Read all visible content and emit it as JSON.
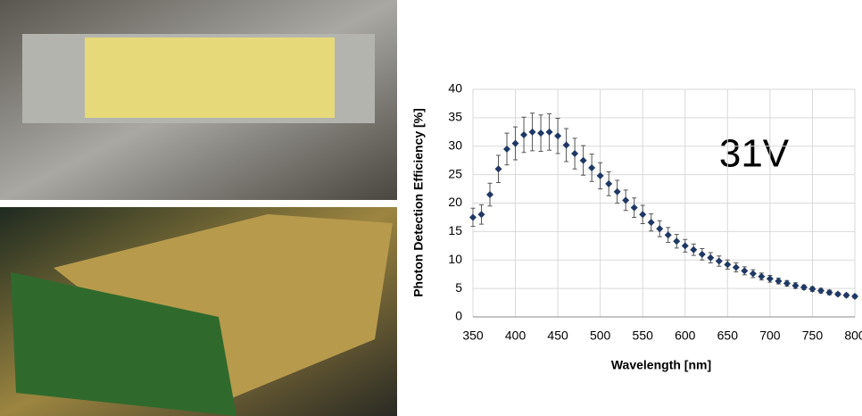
{
  "chart_data": {
    "type": "scatter",
    "xlabel": "Wavelength [nm]",
    "ylabel": "Photon Detection Efficiency [%]",
    "annotation": "31V",
    "color": "#1f3864",
    "grid": true,
    "xlim": [
      350,
      800
    ],
    "xticks": [
      350,
      400,
      450,
      500,
      550,
      600,
      650,
      700,
      750,
      800
    ],
    "ylim": [
      0,
      40
    ],
    "yticks": [
      0,
      5,
      10,
      15,
      20,
      25,
      30,
      35,
      40
    ],
    "x": [
      350,
      360,
      370,
      380,
      390,
      400,
      410,
      420,
      430,
      440,
      450,
      460,
      470,
      480,
      490,
      500,
      510,
      520,
      530,
      540,
      550,
      560,
      570,
      580,
      590,
      600,
      610,
      620,
      630,
      640,
      650,
      660,
      670,
      680,
      690,
      700,
      710,
      720,
      730,
      740,
      750,
      760,
      770,
      780,
      790,
      800
    ],
    "values": [
      17.5,
      18,
      21.5,
      26,
      29.5,
      30.5,
      32,
      32.5,
      32.3,
      32.5,
      31.8,
      30.2,
      28.7,
      27.5,
      26.2,
      24.8,
      23.4,
      22,
      20.5,
      19.2,
      18,
      16.6,
      15.5,
      14.4,
      13.3,
      12.5,
      11.8,
      11,
      10.4,
      9.8,
      9.2,
      8.7,
      8.1,
      7.6,
      7.1,
      6.7,
      6.3,
      5.9,
      5.5,
      5.2,
      4.9,
      4.6,
      4.3,
      4.0,
      3.8,
      3.6
    ],
    "errors": [
      1.6,
      1.7,
      2.0,
      2.4,
      2.8,
      2.9,
      3.1,
      3.3,
      3.2,
      3.2,
      3.1,
      2.9,
      2.7,
      2.6,
      2.4,
      2.3,
      2.1,
      2.0,
      1.8,
      1.7,
      1.6,
      1.5,
      1.4,
      1.3,
      1.2,
      1.1,
      1.0,
      1.0,
      0.9,
      0.9,
      0.8,
      0.8,
      0.7,
      0.7,
      0.6,
      0.6,
      0.5,
      0.5,
      0.5,
      0.4,
      0.4,
      0.4,
      0.4,
      0.3,
      0.3,
      0.3
    ]
  }
}
